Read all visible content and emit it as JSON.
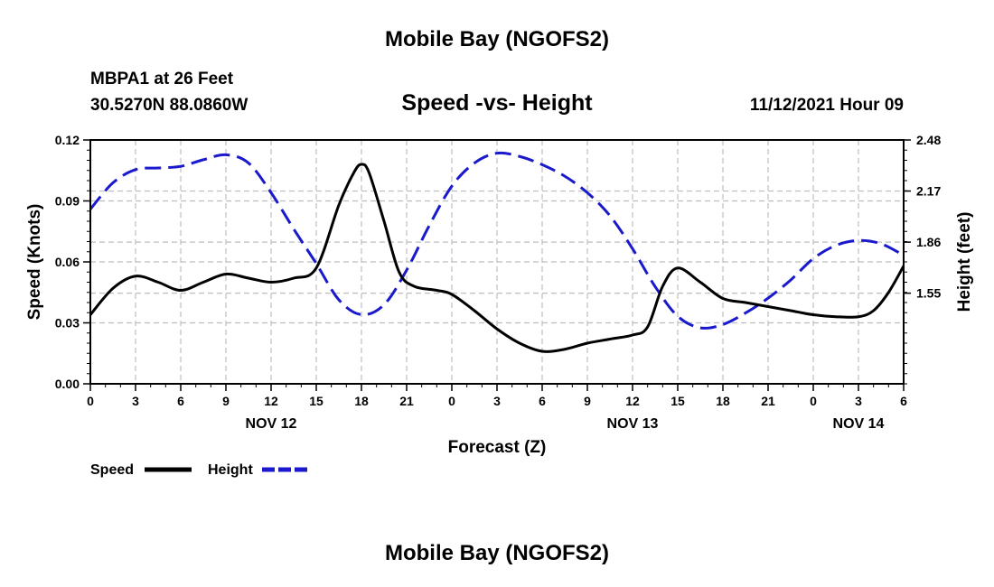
{
  "colors": {
    "speed": "#000000",
    "height": "#1a1acc",
    "grid": "#bdbdbd"
  },
  "header": {
    "title": "Mobile Bay (NGOFS2)",
    "station": "MBPA1 at 26 Feet",
    "coords": "30.5270N  88.0860W",
    "subtitle": "Speed -vs- Height",
    "datetime": "11/12/2021 Hour 09"
  },
  "footer": {
    "title": "Mobile Bay (NGOFS2)"
  },
  "chart_data": {
    "type": "line",
    "xlabel": "Forecast (Z)",
    "ylabel_left": "Speed (Knots)",
    "ylabel_right": "Height (feet)",
    "x_range": [
      0,
      54
    ],
    "y_left_range": [
      0,
      0.12
    ],
    "y_right_range": [
      1.0,
      2.48
    ],
    "grid": true,
    "x_ticks": [
      0,
      3,
      6,
      9,
      12,
      15,
      18,
      21,
      24,
      27,
      30,
      33,
      36,
      39,
      42,
      45,
      48,
      51,
      54
    ],
    "x_tick_labels": [
      "0",
      "3",
      "6",
      "9",
      "12",
      "15",
      "18",
      "21",
      "0",
      "3",
      "6",
      "9",
      "12",
      "15",
      "18",
      "21",
      "0",
      "3",
      "6"
    ],
    "date_labels": [
      {
        "hour": 12,
        "label": "NOV 12"
      },
      {
        "hour": 36,
        "label": "NOV 13"
      },
      {
        "hour": 51,
        "label": "NOV 14"
      }
    ],
    "y_left_ticks": [
      0,
      0.03,
      0.06,
      0.09,
      0.12
    ],
    "y_left_tick_labels": [
      "0.00",
      "0.03",
      "0.06",
      "0.09",
      "0.12"
    ],
    "y_right_ticks": [
      1.55,
      1.86,
      2.17,
      2.48
    ],
    "y_right_tick_labels": [
      "1.55",
      "1.86",
      "2.17",
      "2.48"
    ],
    "legend": [
      {
        "name": "Speed",
        "style": "solid"
      },
      {
        "name": "Height",
        "style": "dashed"
      }
    ],
    "series": [
      {
        "name": "Speed",
        "axis": "left",
        "style": "solid",
        "x": [
          0,
          1.5,
          3,
          4.5,
          6,
          7.5,
          9,
          10.5,
          12,
          13.5,
          15,
          16.5,
          17.5,
          18,
          18.5,
          19.5,
          20.5,
          21.5,
          23,
          24,
          25.5,
          27,
          28.5,
          30,
          31.5,
          33,
          34.5,
          36,
          37,
          38,
          39,
          40.5,
          42,
          43.5,
          45,
          46.5,
          48,
          49.5,
          51,
          52,
          53,
          54
        ],
        "values": [
          0.034,
          0.047,
          0.053,
          0.05,
          0.046,
          0.05,
          0.054,
          0.052,
          0.05,
          0.052,
          0.057,
          0.088,
          0.104,
          0.108,
          0.104,
          0.08,
          0.055,
          0.048,
          0.046,
          0.044,
          0.036,
          0.027,
          0.02,
          0.016,
          0.017,
          0.02,
          0.022,
          0.024,
          0.028,
          0.048,
          0.057,
          0.05,
          0.042,
          0.04,
          0.038,
          0.036,
          0.034,
          0.033,
          0.033,
          0.036,
          0.045,
          0.058
        ]
      },
      {
        "name": "Height",
        "axis": "right",
        "style": "dashed",
        "x": [
          0,
          1.5,
          3,
          4.5,
          6,
          7.5,
          9,
          10.5,
          12,
          13.5,
          15,
          16.5,
          18,
          19.5,
          21,
          22.5,
          24,
          25.5,
          27,
          28.5,
          30,
          31.5,
          33,
          34.5,
          36,
          37.5,
          39,
          40.5,
          42,
          43.5,
          45,
          46.5,
          48,
          49.5,
          51,
          52.5,
          54
        ],
        "values": [
          2.06,
          2.22,
          2.3,
          2.31,
          2.32,
          2.36,
          2.39,
          2.34,
          2.16,
          1.94,
          1.73,
          1.51,
          1.42,
          1.48,
          1.69,
          1.96,
          2.2,
          2.34,
          2.4,
          2.38,
          2.33,
          2.26,
          2.16,
          2.02,
          1.82,
          1.59,
          1.41,
          1.34,
          1.36,
          1.43,
          1.52,
          1.63,
          1.76,
          1.84,
          1.87,
          1.85,
          1.78
        ]
      }
    ]
  }
}
